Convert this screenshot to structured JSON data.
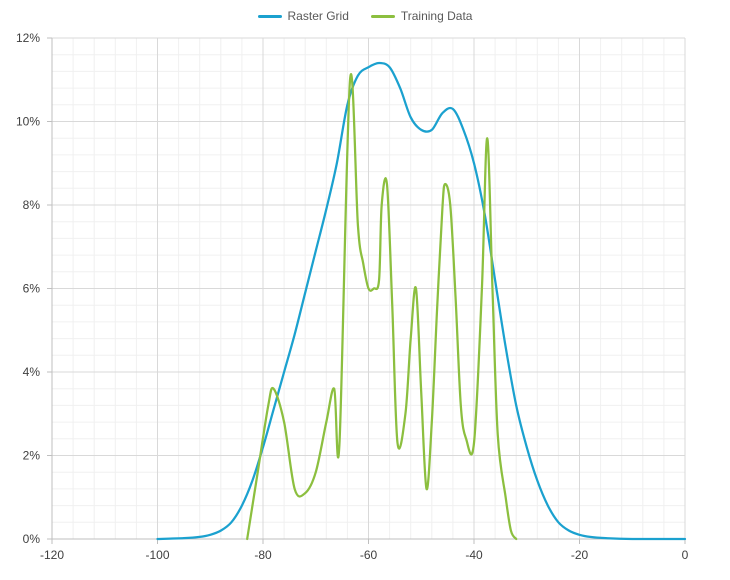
{
  "chart_data": {
    "type": "line",
    "xlim": [
      -120,
      0
    ],
    "ylim": [
      0,
      12
    ],
    "x_ticks": [
      -120,
      -100,
      -80,
      -60,
      -40,
      -20,
      0
    ],
    "y_ticks": [
      0,
      2,
      4,
      6,
      8,
      10,
      12
    ],
    "x_tick_labels": [
      "-120",
      "-100",
      "-80",
      "-60",
      "-40",
      "-20",
      "0"
    ],
    "y_tick_labels": [
      "0%",
      "2%",
      "4%",
      "6%",
      "8%",
      "10%",
      "12%"
    ],
    "y_unit": "%",
    "grid": true,
    "legend_position": "top-center",
    "series": [
      {
        "name": "Raster Grid",
        "color": "#1ba1cf",
        "x": [
          -100,
          -95,
          -92,
          -90,
          -88,
          -86,
          -84,
          -82,
          -80,
          -78,
          -76,
          -74,
          -72,
          -70,
          -68,
          -66,
          -64,
          -62,
          -60,
          -58,
          -56,
          -54,
          -52,
          -50,
          -48,
          -46,
          -44,
          -42,
          -40,
          -38,
          -36,
          -34,
          -32,
          -30,
          -28,
          -26,
          -24,
          -22,
          -20,
          -18,
          -15,
          -10,
          0
        ],
        "y": [
          0,
          0.02,
          0.05,
          0.1,
          0.2,
          0.4,
          0.8,
          1.4,
          2.2,
          3.1,
          4.0,
          4.9,
          5.9,
          6.9,
          7.9,
          9.0,
          10.4,
          11.1,
          11.3,
          11.4,
          11.3,
          10.8,
          10.1,
          9.8,
          9.8,
          10.2,
          10.3,
          9.8,
          9.0,
          7.8,
          6.2,
          4.6,
          3.2,
          2.2,
          1.4,
          0.8,
          0.4,
          0.2,
          0.1,
          0.05,
          0.02,
          0,
          0
        ]
      },
      {
        "name": "Training Data",
        "color": "#8cbf3f",
        "x": [
          -83,
          -81,
          -79,
          -78,
          -76,
          -74,
          -72,
          -70,
          -68,
          -66.5,
          -65.5,
          -63.5,
          -62,
          -61,
          -60,
          -59,
          -58,
          -57.5,
          -56.5,
          -55.5,
          -54.5,
          -53,
          -52,
          -51,
          -50,
          -49,
          -48,
          -47,
          -46,
          -45.5,
          -44.5,
          -43.5,
          -42.5,
          -41.5,
          -40,
          -38.5,
          -37.5,
          -36.5,
          -35.5,
          -34,
          -33,
          -32
        ],
        "y": [
          0,
          1.6,
          3.2,
          3.6,
          2.8,
          1.2,
          1.1,
          1.6,
          2.8,
          3.6,
          2.3,
          11.0,
          7.5,
          6.6,
          6.0,
          6.0,
          6.2,
          8.0,
          8.5,
          5.6,
          2.3,
          3.0,
          4.8,
          6.0,
          3.5,
          1.2,
          2.8,
          5.5,
          7.9,
          8.5,
          8.0,
          5.8,
          3.2,
          2.4,
          2.3,
          6.0,
          9.6,
          6.0,
          2.5,
          1.0,
          0.2,
          0
        ]
      }
    ]
  }
}
